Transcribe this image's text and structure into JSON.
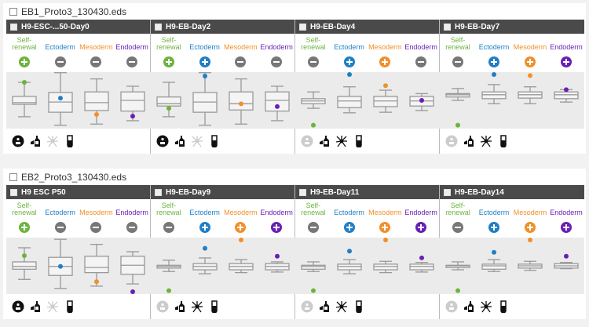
{
  "colors": {
    "self_renewal": "#6db33f",
    "ectoderm": "#1f7fc6",
    "mesoderm": "#f0902a",
    "endoderm": "#6a1fb4",
    "neutral": "#777777",
    "inactive": "#cccccc"
  },
  "categories": [
    {
      "key": "self_renewal",
      "label_line1": "Self-",
      "label_line2": "renewal"
    },
    {
      "key": "ectoderm",
      "label_line1": "",
      "label_line2": "Ectoderm"
    },
    {
      "key": "mesoderm",
      "label_line1": "",
      "label_line2": "Mesoderm"
    },
    {
      "key": "endoderm",
      "label_line1": "",
      "label_line2": "Endoderm"
    }
  ],
  "bottom_icons": [
    "eb-badge-icon",
    "bottle-icon",
    "neuron-icon",
    "tube-icon"
  ],
  "groups": [
    {
      "title": "EB1_Proto3_130430.eds",
      "panels": [
        {
          "name": "H9-ESC-...50-Day0",
          "calls": [
            "plus",
            "minus",
            "minus",
            "minus"
          ],
          "icons_active": [
            true,
            true,
            false,
            true
          ],
          "boxes": [
            {
              "wmax": 82,
              "q3": 57,
              "med": 46,
              "q1": 43,
              "wmin": 21,
              "sample": 82
            },
            {
              "wmax": 99,
              "q3": 64,
              "med": 47,
              "q1": 29,
              "wmin": 6,
              "sample": 54
            },
            {
              "wmax": 88,
              "q3": 65,
              "med": 46,
              "q1": 32,
              "wmin": 8,
              "sample": 25
            },
            {
              "wmax": 75,
              "q3": 65,
              "med": 50,
              "q1": 31,
              "wmin": 14,
              "sample": 22
            }
          ]
        },
        {
          "name": "H9-EB-Day2",
          "calls": [
            "plus",
            "plus",
            "minus",
            "minus"
          ],
          "icons_active": [
            true,
            true,
            false,
            true
          ],
          "boxes": [
            {
              "wmax": 82,
              "q3": 56,
              "med": 44,
              "q1": 40,
              "wmin": 21,
              "sample": 36
            },
            {
              "wmax": 99,
              "q3": 64,
              "med": 47,
              "q1": 29,
              "wmin": 6,
              "sample": 93
            },
            {
              "wmax": 88,
              "q3": 65,
              "med": 44,
              "q1": 33,
              "wmin": 8,
              "sample": 44
            },
            {
              "wmax": 75,
              "q3": 65,
              "med": 50,
              "q1": 31,
              "wmin": 14,
              "sample": 39
            }
          ]
        },
        {
          "name": "H9-EB-Day4",
          "calls": [
            "minus",
            "plus",
            "plus",
            "minus"
          ],
          "icons_active": [
            false,
            true,
            true,
            true
          ],
          "boxes": [
            {
              "wmax": 65,
              "q3": 53,
              "med": 49,
              "q1": 44,
              "wmin": 36,
              "sample": 6
            },
            {
              "wmax": 74,
              "q3": 57,
              "med": 49,
              "q1": 37,
              "wmin": 28,
              "sample": 99
            },
            {
              "wmax": 68,
              "q3": 57,
              "med": 49,
              "q1": 39,
              "wmin": 29,
              "sample": 76
            },
            {
              "wmax": 62,
              "q3": 57,
              "med": 49,
              "q1": 40,
              "wmin": 32,
              "sample": 50
            }
          ]
        },
        {
          "name": "H9-EB-Day7",
          "calls": [
            "minus",
            "plus",
            "plus",
            "plus"
          ],
          "icons_active": [
            false,
            true,
            true,
            true
          ],
          "boxes": [
            {
              "wmax": 71,
              "q3": 62,
              "med": 60,
              "q1": 56,
              "wmin": 50,
              "sample": 6
            },
            {
              "wmax": 78,
              "q3": 65,
              "med": 60,
              "q1": 53,
              "wmin": 44,
              "sample": 99
            },
            {
              "wmax": 74,
              "q3": 65,
              "med": 60,
              "q1": 54,
              "wmin": 44,
              "sample": 94
            },
            {
              "wmax": 69,
              "q3": 65,
              "med": 60,
              "q1": 53,
              "wmin": 47,
              "sample": 69
            }
          ]
        }
      ]
    },
    {
      "title": "EB2_Proto3_130430.eds",
      "panels": [
        {
          "name": "H9 ESC P50",
          "calls": [
            "plus",
            "minus",
            "minus",
            "minus"
          ],
          "icons_active": [
            true,
            true,
            false,
            true
          ],
          "boxes": [
            {
              "wmax": 82,
              "q3": 57,
              "med": 49,
              "q1": 44,
              "wmin": 26,
              "sample": 68
            },
            {
              "wmax": 97,
              "q3": 65,
              "med": 49,
              "q1": 33,
              "wmin": 10,
              "sample": 49
            },
            {
              "wmax": 88,
              "q3": 67,
              "med": 47,
              "q1": 38,
              "wmin": 14,
              "sample": 22
            },
            {
              "wmax": 75,
              "q3": 67,
              "med": 51,
              "q1": 35,
              "wmin": 18,
              "sample": 4
            }
          ]
        },
        {
          "name": "H9-EB-Day9",
          "calls": [
            "minus",
            "plus",
            "plus",
            "plus"
          ],
          "icons_active": [
            false,
            true,
            true,
            true
          ],
          "boxes": [
            {
              "wmax": 60,
              "q3": 51,
              "med": 49,
              "q1": 46,
              "wmin": 40,
              "sample": 6
            },
            {
              "wmax": 64,
              "q3": 54,
              "med": 49,
              "q1": 43,
              "wmin": 36,
              "sample": 81
            },
            {
              "wmax": 61,
              "q3": 54,
              "med": 49,
              "q1": 43,
              "wmin": 38,
              "sample": 97
            },
            {
              "wmax": 57,
              "q3": 54,
              "med": 49,
              "q1": 43,
              "wmin": 39,
              "sample": 67
            }
          ]
        },
        {
          "name": "H9-EB-Day11",
          "calls": [
            "minus",
            "plus",
            "plus",
            "plus"
          ],
          "icons_active": [
            false,
            true,
            true,
            true
          ],
          "boxes": [
            {
              "wmax": 57,
              "q3": 51,
              "med": 49,
              "q1": 44,
              "wmin": 40,
              "sample": 6
            },
            {
              "wmax": 61,
              "q3": 53,
              "med": 49,
              "q1": 43,
              "wmin": 36,
              "sample": 76
            },
            {
              "wmax": 58,
              "q3": 53,
              "med": 49,
              "q1": 43,
              "wmin": 38,
              "sample": 97
            },
            {
              "wmax": 56,
              "q3": 53,
              "med": 49,
              "q1": 43,
              "wmin": 39,
              "sample": 64
            }
          ]
        },
        {
          "name": "H9-EB-Day14",
          "calls": [
            "minus",
            "plus",
            "plus",
            "plus"
          ],
          "icons_active": [
            false,
            true,
            true,
            true
          ],
          "boxes": [
            {
              "wmax": 57,
              "q3": 51,
              "med": 50,
              "q1": 47,
              "wmin": 43,
              "sample": 6
            },
            {
              "wmax": 61,
              "q3": 53,
              "med": 50,
              "q1": 44,
              "wmin": 40,
              "sample": 74
            },
            {
              "wmax": 58,
              "q3": 53,
              "med": 50,
              "q1": 46,
              "wmin": 42,
              "sample": 97
            },
            {
              "wmax": 56,
              "q3": 54,
              "med": 50,
              "q1": 46,
              "wmin": 45,
              "sample": 67
            }
          ]
        }
      ]
    }
  ]
}
